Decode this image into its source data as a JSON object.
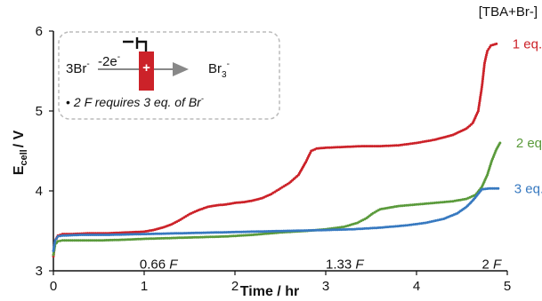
{
  "chart_data": {
    "type": "scatter",
    "xlabel": "Time / hr",
    "ylabel_main": "E",
    "ylabel_sub": "cell",
    "ylabel_tail": "/ V",
    "xlim": [
      0,
      5
    ],
    "ylim": [
      3,
      6
    ],
    "xticks": [
      "0",
      "1",
      "2",
      "3",
      "4",
      "5"
    ],
    "yticks": [
      "3",
      "4",
      "5",
      "6"
    ],
    "legend_title": "[TBA+Br-]",
    "grid": false,
    "series": [
      {
        "name": "1 eq.",
        "color": "#cc2229",
        "end_label": "0.66",
        "end_label_unit": "F",
        "end_x": 0.95,
        "end_y": 3.05,
        "points": [
          [
            0.0,
            3.18
          ],
          [
            0.02,
            3.38
          ],
          [
            0.05,
            3.44
          ],
          [
            0.1,
            3.46
          ],
          [
            0.2,
            3.46
          ],
          [
            0.4,
            3.47
          ],
          [
            0.6,
            3.47
          ],
          [
            0.8,
            3.48
          ],
          [
            1.0,
            3.49
          ],
          [
            1.1,
            3.51
          ],
          [
            1.2,
            3.54
          ],
          [
            1.3,
            3.58
          ],
          [
            1.4,
            3.64
          ],
          [
            1.5,
            3.71
          ],
          [
            1.6,
            3.76
          ],
          [
            1.7,
            3.8
          ],
          [
            1.8,
            3.82
          ],
          [
            1.9,
            3.83
          ],
          [
            2.0,
            3.85
          ],
          [
            2.1,
            3.86
          ],
          [
            2.2,
            3.88
          ],
          [
            2.3,
            3.91
          ],
          [
            2.4,
            3.96
          ],
          [
            2.5,
            4.03
          ],
          [
            2.6,
            4.1
          ],
          [
            2.7,
            4.2
          ],
          [
            2.78,
            4.36
          ],
          [
            2.84,
            4.5
          ],
          [
            2.9,
            4.53
          ],
          [
            3.0,
            4.54
          ],
          [
            3.2,
            4.55
          ],
          [
            3.4,
            4.56
          ],
          [
            3.6,
            4.56
          ],
          [
            3.8,
            4.57
          ],
          [
            4.0,
            4.6
          ],
          [
            4.2,
            4.64
          ],
          [
            4.4,
            4.7
          ],
          [
            4.55,
            4.78
          ],
          [
            4.62,
            4.85
          ],
          [
            4.68,
            5.0
          ],
          [
            4.72,
            5.3
          ],
          [
            4.75,
            5.6
          ],
          [
            4.78,
            5.75
          ],
          [
            4.82,
            5.82
          ],
          [
            4.88,
            5.84
          ]
        ]
      },
      {
        "name": "2 eq.",
        "color": "#5a9a3b",
        "end_label": "1.33",
        "end_label_unit": "F",
        "end_x": 3.0,
        "end_y": 3.05,
        "points": [
          [
            0.0,
            3.2
          ],
          [
            0.02,
            3.33
          ],
          [
            0.05,
            3.37
          ],
          [
            0.1,
            3.38
          ],
          [
            0.3,
            3.38
          ],
          [
            0.5,
            3.38
          ],
          [
            0.8,
            3.39
          ],
          [
            1.0,
            3.4
          ],
          [
            1.3,
            3.41
          ],
          [
            1.6,
            3.42
          ],
          [
            1.9,
            3.43
          ],
          [
            2.2,
            3.45
          ],
          [
            2.5,
            3.48
          ],
          [
            2.8,
            3.5
          ],
          [
            3.0,
            3.52
          ],
          [
            3.2,
            3.55
          ],
          [
            3.35,
            3.6
          ],
          [
            3.45,
            3.66
          ],
          [
            3.52,
            3.72
          ],
          [
            3.6,
            3.77
          ],
          [
            3.7,
            3.79
          ],
          [
            3.8,
            3.81
          ],
          [
            4.0,
            3.83
          ],
          [
            4.2,
            3.85
          ],
          [
            4.4,
            3.87
          ],
          [
            4.55,
            3.9
          ],
          [
            4.65,
            3.95
          ],
          [
            4.72,
            4.05
          ],
          [
            4.78,
            4.2
          ],
          [
            4.83,
            4.38
          ],
          [
            4.88,
            4.52
          ],
          [
            4.92,
            4.6
          ]
        ]
      },
      {
        "name": "3 eq.",
        "color": "#3779c0",
        "end_label": "2",
        "end_label_unit": "F",
        "end_x": 4.72,
        "end_y": 3.05,
        "points": [
          [
            0.0,
            3.25
          ],
          [
            0.02,
            3.38
          ],
          [
            0.05,
            3.43
          ],
          [
            0.1,
            3.44
          ],
          [
            0.3,
            3.45
          ],
          [
            0.6,
            3.45
          ],
          [
            1.0,
            3.46
          ],
          [
            1.4,
            3.47
          ],
          [
            1.8,
            3.48
          ],
          [
            2.2,
            3.49
          ],
          [
            2.6,
            3.5
          ],
          [
            3.0,
            3.51
          ],
          [
            3.3,
            3.52
          ],
          [
            3.6,
            3.54
          ],
          [
            3.9,
            3.57
          ],
          [
            4.1,
            3.6
          ],
          [
            4.3,
            3.65
          ],
          [
            4.45,
            3.72
          ],
          [
            4.55,
            3.8
          ],
          [
            4.62,
            3.88
          ],
          [
            4.67,
            3.95
          ],
          [
            4.72,
            4.02
          ],
          [
            4.8,
            4.03
          ],
          [
            4.9,
            4.03
          ]
        ]
      }
    ]
  },
  "inset": {
    "reactant": "3Br",
    "reactant_sup": "-",
    "electrons": "-2e",
    "electrons_sup": "-",
    "product": "Br",
    "product_sub": "3",
    "product_sup": "-",
    "plus": "+",
    "note_bullet": "•",
    "note": "2 F requires 3 eq. of Br",
    "note_sup": "-"
  }
}
